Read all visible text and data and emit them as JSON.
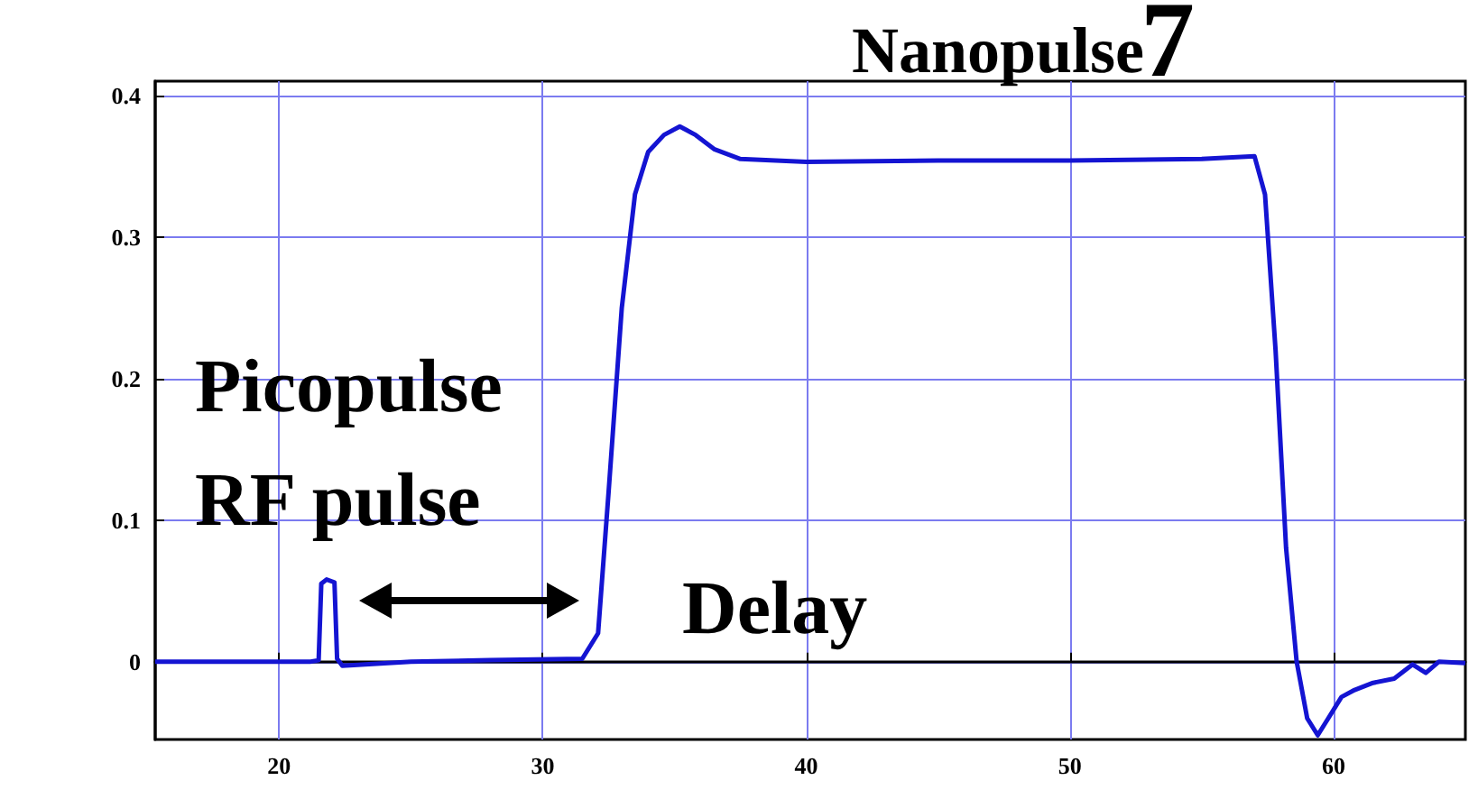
{
  "chart_data": {
    "type": "line",
    "title": "Nanopulse",
    "x": [
      15.3,
      18,
      21.2,
      21.5,
      21.6,
      21.8,
      22.1,
      22.2,
      22.4,
      25,
      28,
      31.5,
      32.1,
      32.5,
      33,
      33.5,
      34,
      34.6,
      35.2,
      35.8,
      36.5,
      37.5,
      40,
      45,
      50,
      55,
      57,
      57.4,
      57.8,
      58.2,
      58.6,
      59,
      59.4,
      59.8,
      60.3,
      60.8,
      61.5,
      62.3,
      63,
      63.5,
      64,
      65
    ],
    "series": [
      {
        "color": "#1414d2",
        "values": [
          0,
          0,
          0,
          0.001,
          0.055,
          0.058,
          0.056,
          0.002,
          -0.003,
          0,
          0.001,
          0.002,
          0.02,
          0.12,
          0.25,
          0.33,
          0.36,
          0.372,
          0.378,
          0.372,
          0.362,
          0.355,
          0.353,
          0.354,
          0.354,
          0.355,
          0.357,
          0.33,
          0.22,
          0.08,
          0.0,
          -0.04,
          -0.052,
          -0.04,
          -0.025,
          -0.02,
          -0.015,
          -0.012,
          -0.002,
          -0.008,
          0,
          -0.001
        ]
      }
    ],
    "xlim": [
      15.3,
      65
    ],
    "ylim": [
      -0.055,
      0.41
    ],
    "xticks": [
      20,
      30,
      40,
      50,
      60
    ],
    "yticks": [
      0,
      0.1,
      0.2,
      0.3,
      0.4
    ],
    "grid": true,
    "marker": "none",
    "line_style": "solid",
    "annotations": [
      "Picopulse",
      "RF pulse",
      "Delay",
      "7"
    ]
  }
}
